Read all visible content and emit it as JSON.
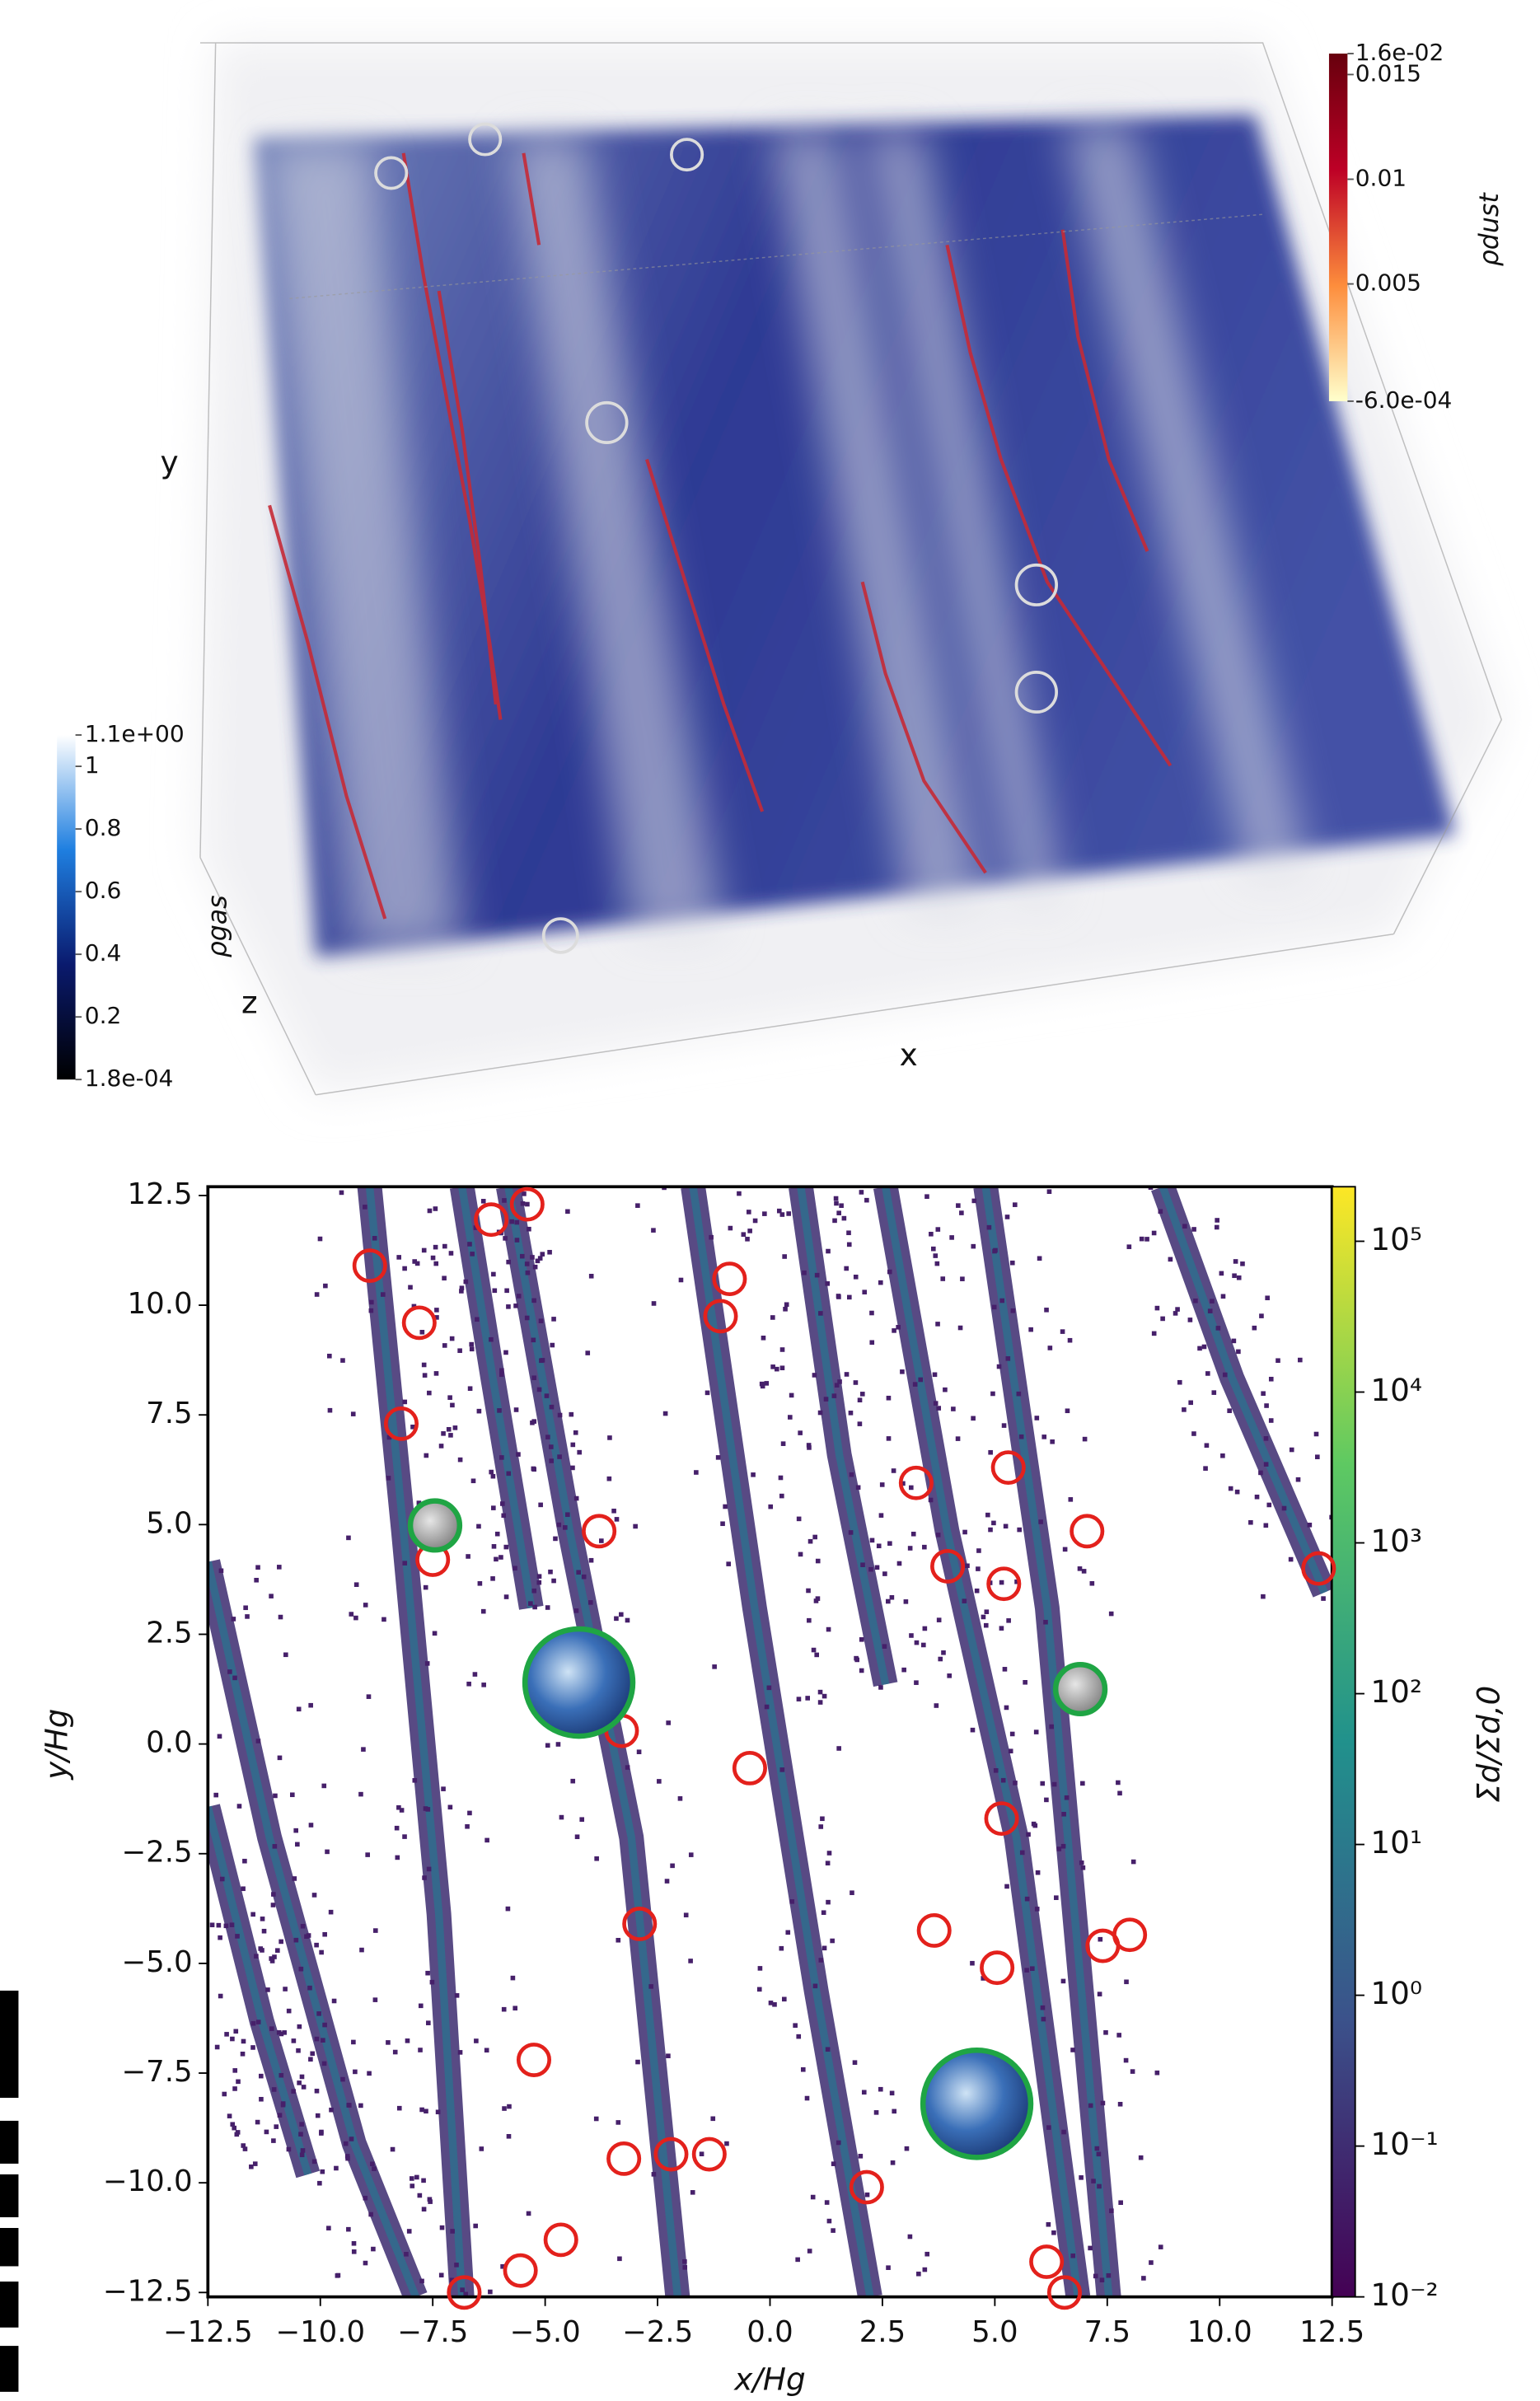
{
  "chart_data": [
    {
      "type": "volume",
      "axis_labels": {
        "x": "x",
        "y": "y",
        "z": "z"
      },
      "colorbars": [
        {
          "label": "ρdust",
          "lim": [
            -0.0006,
            0.016
          ],
          "ticks": [
            {
              "value": 0.016,
              "label": "1.6e-02"
            },
            0.015,
            0.01,
            0.005,
            {
              "value": -0.0006,
              "label": "-6.0e-04"
            }
          ],
          "colors": [
            "#ffffcc",
            "#fd8d3c",
            "#bd0026",
            "#67000d"
          ]
        },
        {
          "label": "ρgas",
          "lim": [
            0.00018,
            1.1
          ],
          "ticks": [
            {
              "value": 1.1,
              "label": "1.1e+00"
            },
            1,
            0.8,
            0.6,
            0.4,
            0.2,
            {
              "value": 0.00018,
              "label": "1.8e-04"
            }
          ],
          "colors": [
            "#000000",
            "#0a1a6e",
            "#1f7fe0",
            "#ffffff"
          ]
        }
      ]
    },
    {
      "type": "heatmap",
      "xlabel": "x/Hg",
      "ylabel": "y/Hg",
      "xlim": [
        -12.5,
        12.5
      ],
      "ylim": [
        -12.6,
        12.7
      ],
      "xticks": [
        {
          "value": -12.5,
          "label": "−12.5"
        },
        {
          "value": -10,
          "label": "−10.0"
        },
        {
          "value": -7.5,
          "label": "−7.5"
        },
        {
          "value": -5,
          "label": "−5.0"
        },
        {
          "value": -2.5,
          "label": "−2.5"
        },
        {
          "value": 0,
          "label": "0.0"
        },
        2.5,
        {
          "value": 5,
          "label": "5.0"
        },
        7.5,
        {
          "value": 10,
          "label": "10.0"
        },
        12.5
      ],
      "yticks": [
        {
          "value": -12.5,
          "label": "−12.5"
        },
        {
          "value": -10,
          "label": "−10.0"
        },
        {
          "value": -7.5,
          "label": "−7.5"
        },
        {
          "value": -5,
          "label": "−5.0"
        },
        {
          "value": -2.5,
          "label": "−2.5"
        },
        {
          "value": 0,
          "label": "0.0"
        },
        2.5,
        {
          "value": 5,
          "label": "5.0"
        },
        7.5,
        {
          "value": 10,
          "label": "10.0"
        },
        12.5
      ],
      "colorbar": {
        "label": "Σd/Σd,0",
        "scale": "log",
        "lim": [
          0.01,
          230000
        ],
        "ticks": [
          {
            "value": 0.01,
            "label": "10⁻²"
          },
          {
            "value": 0.1,
            "label": "10⁻¹"
          },
          {
            "value": 1,
            "label": "10⁰"
          },
          {
            "value": 10,
            "label": "10¹"
          },
          {
            "value": 100,
            "label": "10²"
          },
          {
            "value": 1000,
            "label": "10³"
          },
          {
            "value": 10000,
            "label": "10⁴"
          },
          {
            "value": 100000,
            "label": "10⁵"
          }
        ],
        "colors": [
          "#440154",
          "#3b528b",
          "#21918c",
          "#5ec962",
          "#fde725"
        ]
      },
      "red_circles": {
        "color": "#e3211c",
        "x": [
          -8.9,
          -6.2,
          -5.4,
          -7.8,
          -0.9,
          -1.1,
          -8.2,
          -3.8,
          -7.5,
          3.25,
          5.3,
          7.05,
          3.95,
          5.2,
          12.2,
          -3.3,
          -0.45,
          5.15,
          -2.9,
          3.65,
          5.05,
          7.4,
          8.0,
          -5.25,
          -3.25,
          -2.2,
          -1.35,
          2.15,
          -4.65,
          -5.55,
          -6.8,
          6.15,
          6.55
        ],
        "y": [
          10.9,
          11.95,
          12.3,
          9.6,
          10.6,
          9.75,
          7.3,
          4.85,
          4.2,
          5.95,
          6.3,
          4.85,
          4.05,
          3.65,
          4.0,
          0.3,
          -0.55,
          -1.7,
          -4.1,
          -4.25,
          -5.1,
          -4.6,
          -4.35,
          -7.2,
          -9.45,
          -9.35,
          -9.35,
          -10.1,
          -11.3,
          -12.0,
          -12.5,
          -11.8,
          -12.5
        ]
      },
      "green_circles": {
        "color": "#1fa544",
        "x": [
          -7.45,
          6.9,
          -4.25,
          4.6
        ],
        "y": [
          4.98,
          1.25,
          1.4,
          -8.2
        ]
      }
    }
  ]
}
